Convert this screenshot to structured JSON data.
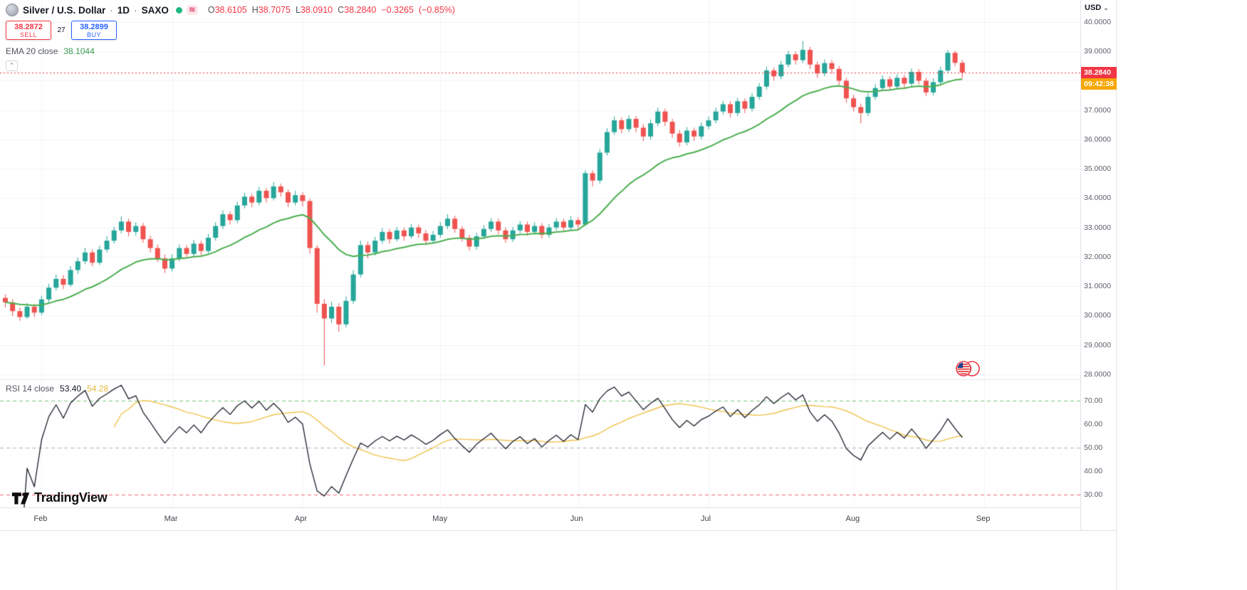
{
  "header": {
    "symbol": "Silver / U.S. Dollar",
    "sep": "·",
    "interval": "1D",
    "exchange": "SAXO",
    "ohlc": {
      "o_label": "O",
      "o": "38.6105",
      "h_label": "H",
      "h": "38.7075",
      "l_label": "L",
      "l": "38.0910",
      "c_label": "C",
      "c": "38.2840",
      "change": "−0.3265",
      "change_pct": "(−0.85%)"
    },
    "sell": {
      "price": "38.2872",
      "label": "SELL"
    },
    "spread": "27",
    "buy": {
      "price": "38.2899",
      "label": "BUY"
    }
  },
  "legends": {
    "ema": {
      "name": "EMA 20 close",
      "value": "38.1044"
    },
    "rsi": {
      "name": "RSI 14 close",
      "value": "53.40",
      "ma_value": "54.28"
    }
  },
  "right_axis": {
    "currency_label": "USD",
    "current_price_label": "38.2840",
    "countdown": "09:42:38"
  },
  "icons": {
    "chevron_up": "⌃",
    "chevron_down": "⌄",
    "delayed": "≋"
  },
  "logo": {
    "text": "TradingView"
  },
  "colors": {
    "up": "#26a69a",
    "down": "#ef5350",
    "ema": "#4caf50",
    "rsi_line": "#1b1f2b",
    "rsi_ma": "#f0c24b",
    "level_upper": "#4caf50",
    "level_middle": "#9598a1",
    "level_lower": "#f23645",
    "grid": "#f0f3fa",
    "border": "#e0e3eb",
    "price_line": "#f23645",
    "price_tag_bg": "#f23645",
    "countdown_bg": "#f7a600",
    "sell_accent": "#f23645",
    "buy_accent": "#2962ff"
  },
  "chart_data": {
    "type": "candlestick",
    "title": "Silver / U.S. Dollar · 1D · SAXO",
    "current_price": 38.284,
    "price_axis": {
      "min": 27.9,
      "max": 40.75,
      "tick_labels": [
        "40.0000",
        "39.0000",
        "38.0000",
        "37.0000",
        "36.0000",
        "35.0000",
        "34.0000",
        "33.0000",
        "32.0000",
        "31.0000",
        "30.0000",
        "29.0000",
        "28.0000"
      ]
    },
    "rsi_axis": {
      "min": 24.5,
      "max": 77.5,
      "tick_labels": [
        "70.00",
        "60.00",
        "50.00",
        "40.00",
        "30.00"
      ],
      "levels": {
        "upper": 70,
        "middle": 50,
        "lower": 30
      }
    },
    "x_axis": {
      "months": [
        "Feb",
        "Mar",
        "Apr",
        "May",
        "Jun",
        "Jul",
        "Aug",
        "Sep"
      ],
      "month_candle_indices": [
        5,
        23,
        41,
        60,
        79,
        97,
        117,
        135
      ]
    },
    "indicators": {
      "ema": {
        "type": "EMA",
        "period": 20,
        "source": "close",
        "current_value": "38.1044"
      },
      "rsi": {
        "type": "RSI",
        "period": 14,
        "source": "close",
        "current_value": "53.40",
        "ma_current_value": "54.28"
      }
    },
    "candles": [
      [
        30.6,
        30.72,
        30.28,
        30.45
      ],
      [
        30.45,
        30.55,
        29.98,
        30.15
      ],
      [
        30.15,
        30.28,
        29.82,
        29.95
      ],
      [
        29.95,
        30.42,
        29.88,
        30.3
      ],
      [
        30.3,
        30.4,
        29.95,
        30.1
      ],
      [
        30.1,
        30.68,
        30.02,
        30.55
      ],
      [
        30.55,
        31.08,
        30.45,
        30.95
      ],
      [
        30.95,
        31.4,
        30.85,
        31.25
      ],
      [
        31.25,
        31.38,
        30.9,
        31.05
      ],
      [
        31.05,
        31.68,
        30.98,
        31.55
      ],
      [
        31.55,
        31.98,
        31.42,
        31.85
      ],
      [
        31.85,
        32.3,
        31.75,
        32.15
      ],
      [
        32.15,
        32.25,
        31.68,
        31.8
      ],
      [
        31.8,
        32.38,
        31.72,
        32.25
      ],
      [
        32.25,
        32.7,
        32.15,
        32.55
      ],
      [
        32.55,
        33.02,
        32.45,
        32.9
      ],
      [
        32.9,
        33.38,
        32.8,
        33.2
      ],
      [
        33.2,
        33.3,
        32.7,
        32.85
      ],
      [
        32.85,
        33.18,
        32.72,
        33.05
      ],
      [
        33.05,
        33.15,
        32.48,
        32.6
      ],
      [
        32.6,
        32.72,
        32.15,
        32.3
      ],
      [
        32.3,
        32.42,
        31.82,
        31.95
      ],
      [
        31.95,
        32.08,
        31.45,
        31.6
      ],
      [
        31.6,
        32.08,
        31.5,
        31.95
      ],
      [
        31.95,
        32.42,
        31.85,
        32.3
      ],
      [
        32.3,
        32.4,
        31.95,
        32.1
      ],
      [
        32.1,
        32.58,
        32.02,
        32.45
      ],
      [
        32.45,
        32.55,
        32.05,
        32.2
      ],
      [
        32.2,
        32.78,
        32.12,
        32.65
      ],
      [
        32.65,
        33.18,
        32.55,
        33.05
      ],
      [
        33.05,
        33.58,
        32.95,
        33.45
      ],
      [
        33.45,
        33.55,
        33.1,
        33.25
      ],
      [
        33.25,
        33.88,
        33.15,
        33.75
      ],
      [
        33.75,
        34.18,
        33.65,
        34.05
      ],
      [
        34.05,
        34.15,
        33.7,
        33.85
      ],
      [
        33.85,
        34.38,
        33.75,
        34.25
      ],
      [
        34.25,
        34.35,
        33.85,
        34.0
      ],
      [
        34.0,
        34.55,
        33.92,
        34.4
      ],
      [
        34.4,
        34.5,
        34.05,
        34.2
      ],
      [
        34.2,
        34.3,
        33.7,
        33.85
      ],
      [
        33.85,
        34.25,
        33.75,
        34.1
      ],
      [
        34.1,
        34.2,
        33.72,
        33.9
      ],
      [
        33.9,
        33.98,
        32.1,
        32.3
      ],
      [
        32.3,
        32.4,
        30.1,
        30.4
      ],
      [
        30.4,
        30.55,
        28.3,
        29.9
      ],
      [
        29.9,
        30.48,
        29.75,
        30.3
      ],
      [
        30.3,
        30.42,
        29.45,
        29.7
      ],
      [
        29.7,
        30.65,
        29.6,
        30.5
      ],
      [
        30.5,
        31.55,
        30.4,
        31.4
      ],
      [
        31.4,
        32.55,
        31.3,
        32.4
      ],
      [
        32.4,
        32.52,
        31.95,
        32.15
      ],
      [
        32.15,
        32.68,
        32.05,
        32.55
      ],
      [
        32.55,
        32.98,
        32.45,
        32.85
      ],
      [
        32.85,
        32.95,
        32.45,
        32.6
      ],
      [
        32.6,
        33.02,
        32.52,
        32.9
      ],
      [
        32.9,
        33.0,
        32.55,
        32.7
      ],
      [
        32.7,
        33.12,
        32.62,
        33.0
      ],
      [
        33.0,
        33.1,
        32.65,
        32.8
      ],
      [
        32.8,
        32.92,
        32.4,
        32.55
      ],
      [
        32.55,
        32.88,
        32.45,
        32.75
      ],
      [
        32.75,
        33.18,
        32.65,
        33.05
      ],
      [
        33.05,
        33.45,
        32.95,
        33.3
      ],
      [
        33.3,
        33.4,
        32.82,
        32.95
      ],
      [
        32.95,
        33.05,
        32.52,
        32.65
      ],
      [
        32.65,
        32.75,
        32.22,
        32.35
      ],
      [
        32.35,
        32.82,
        32.25,
        32.7
      ],
      [
        32.7,
        33.08,
        32.6,
        32.95
      ],
      [
        32.95,
        33.32,
        32.85,
        33.2
      ],
      [
        33.2,
        33.3,
        32.78,
        32.9
      ],
      [
        32.9,
        33.0,
        32.48,
        32.6
      ],
      [
        32.6,
        33.02,
        32.5,
        32.9
      ],
      [
        32.9,
        33.22,
        32.8,
        33.1
      ],
      [
        33.1,
        33.2,
        32.72,
        32.85
      ],
      [
        32.85,
        33.18,
        32.75,
        33.05
      ],
      [
        33.05,
        33.15,
        32.62,
        32.75
      ],
      [
        32.75,
        33.12,
        32.65,
        33.0
      ],
      [
        33.0,
        33.32,
        32.9,
        33.2
      ],
      [
        33.2,
        33.3,
        32.88,
        33.0
      ],
      [
        33.0,
        33.38,
        32.9,
        33.25
      ],
      [
        33.25,
        33.35,
        32.95,
        33.1
      ],
      [
        33.1,
        34.95,
        33.05,
        34.85
      ],
      [
        34.85,
        34.95,
        34.4,
        34.6
      ],
      [
        34.6,
        35.68,
        34.5,
        35.55
      ],
      [
        35.55,
        36.38,
        35.45,
        36.25
      ],
      [
        36.25,
        36.78,
        36.15,
        36.65
      ],
      [
        36.65,
        36.75,
        36.2,
        36.35
      ],
      [
        36.35,
        36.82,
        36.25,
        36.7
      ],
      [
        36.7,
        36.8,
        36.25,
        36.4
      ],
      [
        36.4,
        36.52,
        35.95,
        36.1
      ],
      [
        36.1,
        36.68,
        36.0,
        36.55
      ],
      [
        36.55,
        37.08,
        36.45,
        36.95
      ],
      [
        36.95,
        37.05,
        36.45,
        36.6
      ],
      [
        36.6,
        36.7,
        36.05,
        36.2
      ],
      [
        36.2,
        36.32,
        35.75,
        35.9
      ],
      [
        35.9,
        36.42,
        35.8,
        36.3
      ],
      [
        36.3,
        36.4,
        35.95,
        36.1
      ],
      [
        36.1,
        36.58,
        36.0,
        36.45
      ],
      [
        36.45,
        36.78,
        36.35,
        36.65
      ],
      [
        36.65,
        37.08,
        36.55,
        36.95
      ],
      [
        36.95,
        37.32,
        36.85,
        37.2
      ],
      [
        37.2,
        37.3,
        36.75,
        36.9
      ],
      [
        36.9,
        37.42,
        36.8,
        37.3
      ],
      [
        37.3,
        37.4,
        36.9,
        37.05
      ],
      [
        37.05,
        37.58,
        36.95,
        37.45
      ],
      [
        37.45,
        37.92,
        37.35,
        37.8
      ],
      [
        37.8,
        38.48,
        37.7,
        38.35
      ],
      [
        38.35,
        38.45,
        38.0,
        38.15
      ],
      [
        38.15,
        38.68,
        38.05,
        38.55
      ],
      [
        38.55,
        39.02,
        38.45,
        38.9
      ],
      [
        38.9,
        39.0,
        38.55,
        38.7
      ],
      [
        38.7,
        39.35,
        38.6,
        39.05
      ],
      [
        39.05,
        39.15,
        38.4,
        38.55
      ],
      [
        38.55,
        38.65,
        38.1,
        38.25
      ],
      [
        38.25,
        38.72,
        38.15,
        38.6
      ],
      [
        38.6,
        38.7,
        38.25,
        38.4
      ],
      [
        38.4,
        38.5,
        37.85,
        38.0
      ],
      [
        38.0,
        38.1,
        37.25,
        37.4
      ],
      [
        37.4,
        37.52,
        36.95,
        37.1
      ],
      [
        37.1,
        37.22,
        36.55,
        36.9
      ],
      [
        36.9,
        37.58,
        36.8,
        37.45
      ],
      [
        37.45,
        37.88,
        37.35,
        37.75
      ],
      [
        37.75,
        38.18,
        37.65,
        38.05
      ],
      [
        38.05,
        38.15,
        37.68,
        37.8
      ],
      [
        37.8,
        38.22,
        37.7,
        38.1
      ],
      [
        38.1,
        38.2,
        37.75,
        37.9
      ],
      [
        37.9,
        38.42,
        37.8,
        38.3
      ],
      [
        38.3,
        38.4,
        37.88,
        38.0
      ],
      [
        38.0,
        38.1,
        37.48,
        37.6
      ],
      [
        37.6,
        38.08,
        37.5,
        37.95
      ],
      [
        37.95,
        38.48,
        37.85,
        38.35
      ],
      [
        38.35,
        39.05,
        38.25,
        38.95
      ],
      [
        38.95,
        39.02,
        38.5,
        38.61
      ],
      [
        38.61,
        38.71,
        38.09,
        38.28
      ]
    ]
  }
}
